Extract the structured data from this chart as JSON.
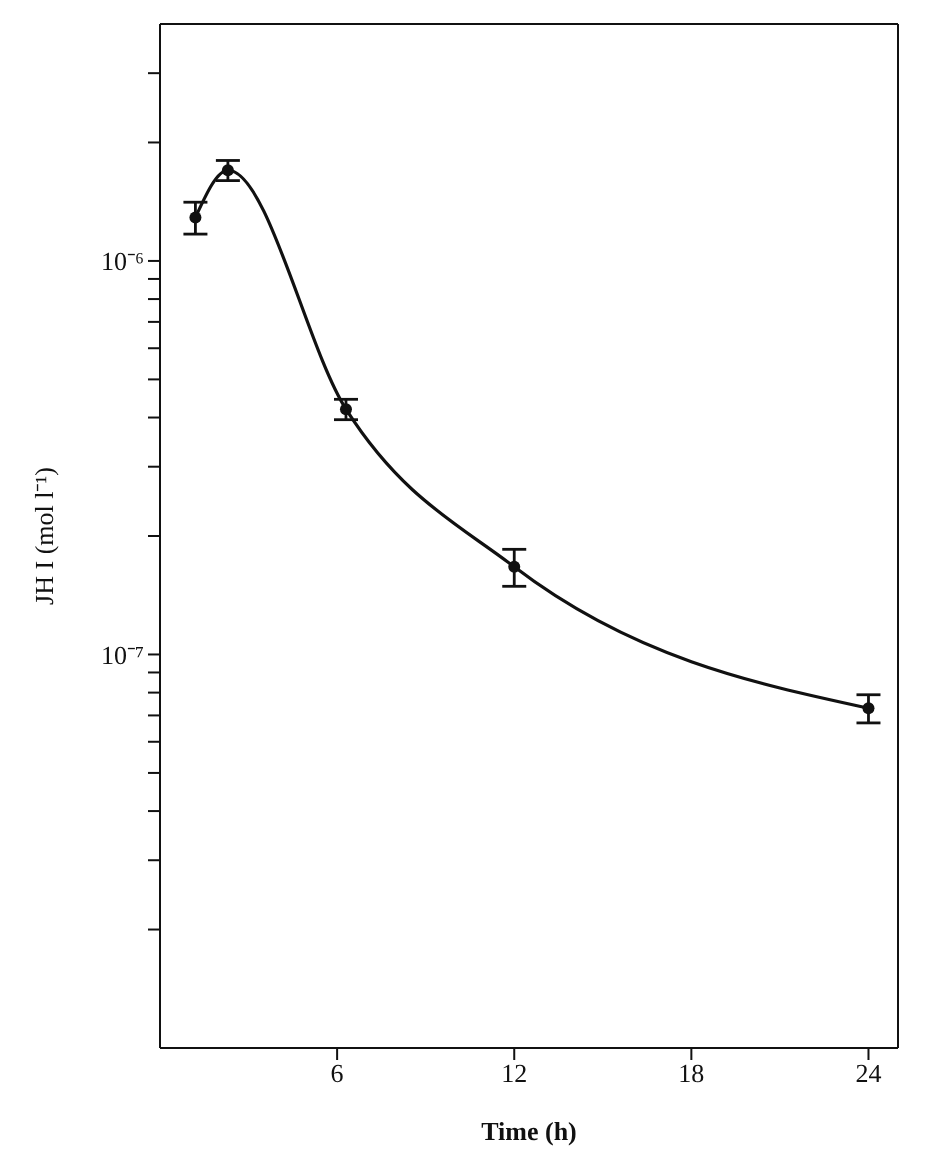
{
  "chart_data": {
    "type": "line",
    "xlabel": "Time (h)",
    "ylabel": "JH I (mol l⁻¹)",
    "x": [
      1.2,
      2.3,
      6.3,
      12,
      24
    ],
    "series": [
      {
        "color": "#111111",
        "values": [
          1.29e-06,
          1.7e-06,
          4.2e-07,
          1.67e-07,
          7.3e-08
        ],
        "errors": [
          1.2e-07,
          1e-07,
          2.5e-08,
          1.8e-08,
          6e-09
        ]
      }
    ],
    "log": "y",
    "marker": "circle",
    "line_style": "solid",
    "xlim": [
      0,
      25
    ],
    "xticks": [
      6,
      12,
      18,
      24
    ],
    "ylim": [
      1e-08,
      4e-06
    ],
    "yticks": [
      {
        "value": 2e-08,
        "label": null
      },
      {
        "value": 3e-08,
        "label": null
      },
      {
        "value": 4e-08,
        "label": null
      },
      {
        "value": 5e-08,
        "label": null
      },
      {
        "value": 6e-08,
        "label": null
      },
      {
        "value": 7e-08,
        "label": null
      },
      {
        "value": 8e-08,
        "label": null
      },
      {
        "value": 9e-08,
        "label": null
      },
      {
        "value": 1e-07,
        "label": "10⁻⁷"
      },
      {
        "value": 2e-07,
        "label": null
      },
      {
        "value": 3e-07,
        "label": null
      },
      {
        "value": 4e-07,
        "label": null
      },
      {
        "value": 5e-07,
        "label": null
      },
      {
        "value": 6e-07,
        "label": null
      },
      {
        "value": 7e-07,
        "label": null
      },
      {
        "value": 8e-07,
        "label": null
      },
      {
        "value": 9e-07,
        "label": null
      },
      {
        "value": 1e-06,
        "label": "10⁻⁶"
      },
      {
        "value": 2e-06,
        "label": null
      },
      {
        "value": 3e-06,
        "label": null
      }
    ]
  }
}
